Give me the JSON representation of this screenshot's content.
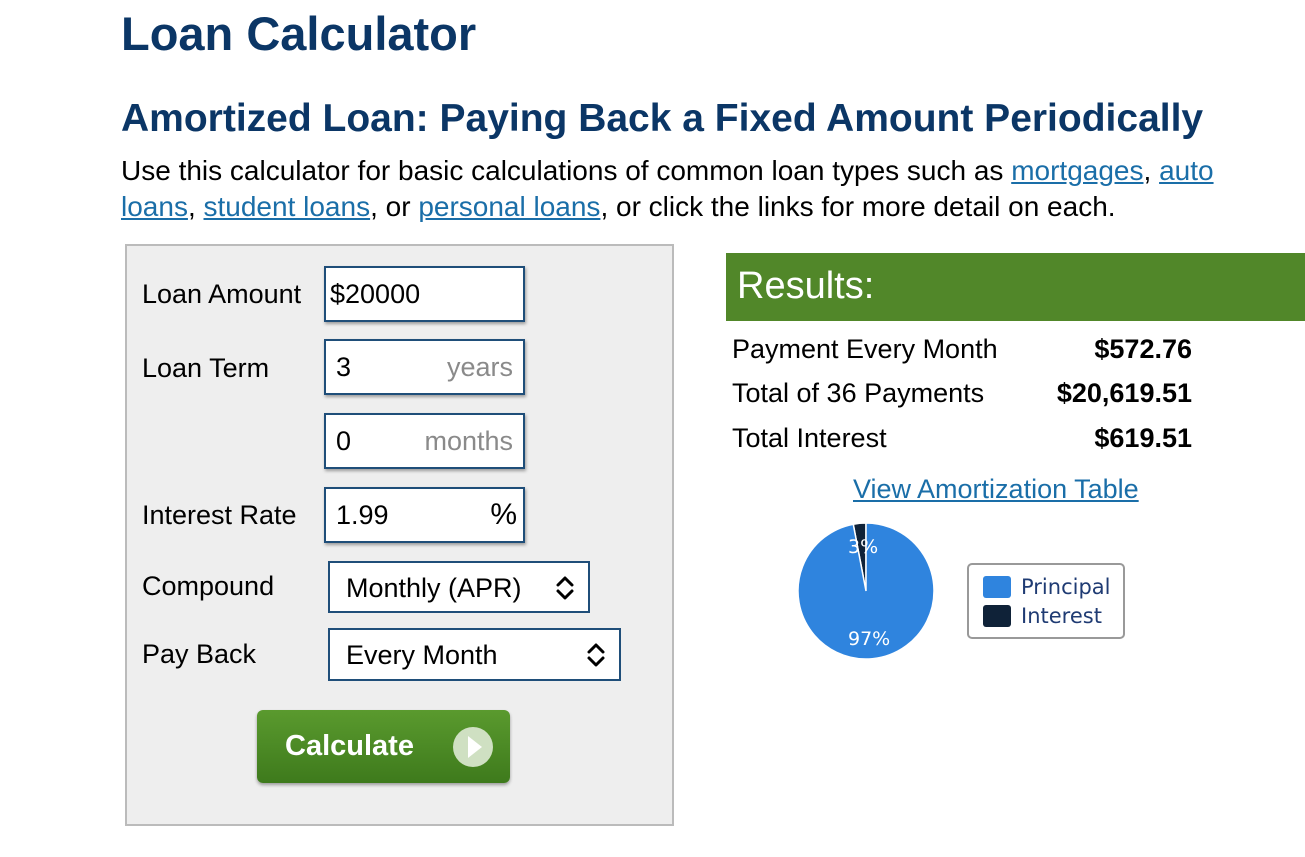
{
  "header": {
    "title": "Loan Calculator",
    "subtitle": "Amortized Loan: Paying Back a Fixed Amount Periodically"
  },
  "intro": {
    "text_before": "Use this calculator for basic calculations of common loan types such as ",
    "links": [
      "mortgages",
      "auto loans",
      "student loans",
      "personal loans"
    ],
    "sep1": ", ",
    "sep2": ", ",
    "sep3": ", or ",
    "text_after": ", or click the links for more detail on each."
  },
  "form": {
    "loan_amount_label": "Loan Amount",
    "loan_amount_value": "$20000",
    "loan_term_label": "Loan Term",
    "loan_term_years": "3",
    "years_unit": "years",
    "loan_term_months": "0",
    "months_unit": "months",
    "interest_rate_label": "Interest Rate",
    "interest_rate_value": "1.99",
    "percent_unit": "%",
    "compound_label": "Compound",
    "compound_value": "Monthly (APR)",
    "pay_back_label": "Pay Back",
    "pay_back_value": "Every Month",
    "calculate_label": "Calculate"
  },
  "results": {
    "heading": "Results:",
    "rows": [
      {
        "label": "Payment Every Month",
        "value": "$572.76"
      },
      {
        "label": "Total of 36 Payments",
        "value": "$20,619.51"
      },
      {
        "label": "Total Interest",
        "value": "$619.51"
      }
    ],
    "amortization_link": "View Amortization Table"
  },
  "chart_data": {
    "type": "pie",
    "categories": [
      "Principal",
      "Interest"
    ],
    "values": [
      97,
      3
    ],
    "labels": [
      "97%",
      "3%"
    ],
    "colors": [
      "#2f84de",
      "#0f2238"
    ],
    "legend_position": "right"
  }
}
